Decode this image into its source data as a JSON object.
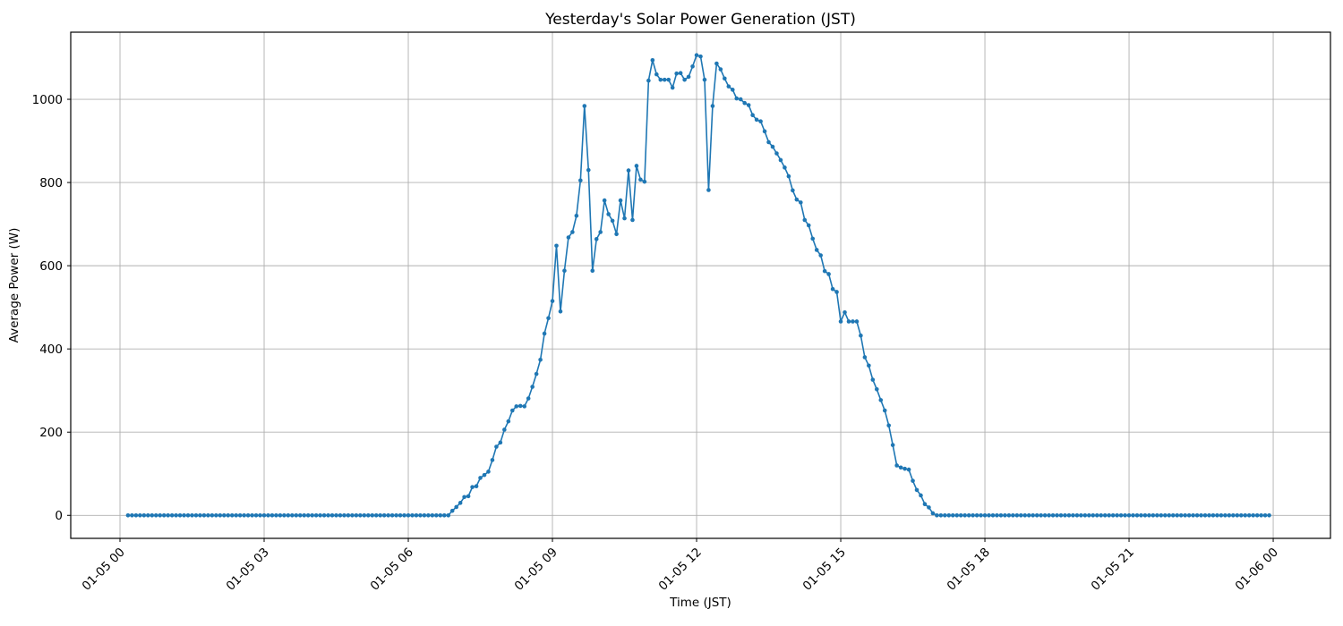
{
  "figure": {
    "background": "#ffffff",
    "spine_color": "#000000",
    "grid_color": "#b0b0b0"
  },
  "chart_data": {
    "type": "line",
    "title": "Yesterday's Solar Power Generation (JST)",
    "xlabel": "Time (JST)",
    "ylabel": "Average Power (W)",
    "line_color": "#1f77b4",
    "marker": "o",
    "grid": true,
    "legend": null,
    "x_tick_labels": [
      "01-05 00",
      "01-05 03",
      "01-05 06",
      "01-05 09",
      "01-05 12",
      "01-05 15",
      "01-05 18",
      "01-05 21",
      "01-06 00"
    ],
    "x_tick_minutes": [
      0,
      180,
      360,
      540,
      720,
      900,
      1080,
      1260,
      1440
    ],
    "y_ticks": [
      0,
      200,
      400,
      600,
      800,
      1000
    ],
    "xlim_minutes": [
      -61.5,
      1511.5
    ],
    "ylim": [
      -55.3,
      1161.3
    ],
    "series": [
      {
        "name": "average_power_w",
        "start_minute": 10,
        "step_minutes": 5,
        "values": [
          0,
          0,
          0,
          0,
          0,
          0,
          0,
          0,
          0,
          0,
          0,
          0,
          0,
          0,
          0,
          0,
          0,
          0,
          0,
          0,
          0,
          0,
          0,
          0,
          0,
          0,
          0,
          0,
          0,
          0,
          0,
          0,
          0,
          0,
          0,
          0,
          0,
          0,
          0,
          0,
          0,
          0,
          0,
          0,
          0,
          0,
          0,
          0,
          0,
          0,
          0,
          0,
          0,
          0,
          0,
          0,
          0,
          0,
          0,
          0,
          0,
          0,
          0,
          0,
          0,
          0,
          0,
          0,
          0,
          0,
          0,
          0,
          0,
          0,
          0,
          0,
          0,
          0,
          0,
          0,
          0,
          11,
          20,
          30,
          44,
          46,
          68,
          70,
          90,
          97,
          105,
          133,
          165,
          175,
          206,
          226,
          252,
          262,
          263,
          262,
          281,
          309,
          340,
          374,
          437,
          474,
          515,
          648,
          490,
          588,
          668,
          681,
          720,
          805,
          984,
          830,
          588,
          664,
          681,
          757,
          724,
          708,
          676,
          757,
          714,
          829,
          710,
          840,
          807,
          802,
          1045,
          1094,
          1060,
          1047,
          1047,
          1047,
          1028,
          1062,
          1063,
          1047,
          1054,
          1079,
          1106,
          1103,
          1047,
          782,
          984,
          1086,
          1072,
          1050,
          1031,
          1023,
          1002,
          1000,
          991,
          986,
          962,
          951,
          947,
          923,
          897,
          886,
          870,
          854,
          836,
          815,
          781,
          759,
          752,
          710,
          697,
          665,
          638,
          625,
          587,
          580,
          544,
          537,
          466,
          488,
          466,
          466,
          466,
          432,
          380,
          360,
          326,
          303,
          277,
          252,
          216,
          169,
          120,
          115,
          112,
          110,
          83,
          61,
          48,
          27,
          19,
          5,
          0,
          0,
          0,
          0,
          0,
          0,
          0,
          0,
          0,
          0,
          0,
          0,
          0,
          0,
          0,
          0,
          0,
          0,
          0,
          0,
          0,
          0,
          0,
          0,
          0,
          0,
          0,
          0,
          0,
          0,
          0,
          0,
          0,
          0,
          0,
          0,
          0,
          0,
          0,
          0,
          0,
          0,
          0,
          0,
          0,
          0,
          0,
          0,
          0,
          0,
          0,
          0,
          0,
          0,
          0,
          0,
          0,
          0,
          0,
          0,
          0,
          0,
          0,
          0,
          0,
          0,
          0,
          0,
          0,
          0,
          0,
          0,
          0,
          0,
          0,
          0,
          0,
          0,
          0,
          0,
          0,
          0,
          0,
          0
        ]
      }
    ]
  }
}
